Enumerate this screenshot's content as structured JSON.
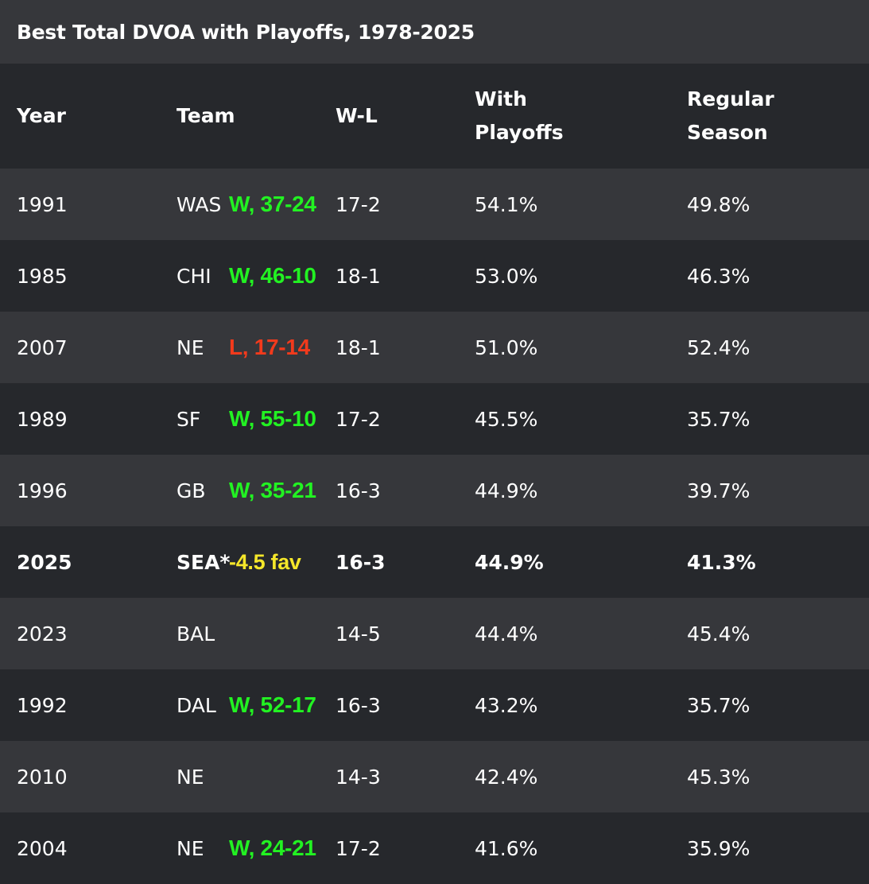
{
  "title": "Best Total DVOA with Playoffs, 1978-2025",
  "colors": {
    "win": "#22f222",
    "loss": "#f23a1c",
    "fav": "#f5e72a",
    "row_light": "#36373b",
    "row_dark": "#26282c"
  },
  "columns": {
    "year": "Year",
    "team": "Team",
    "wl": "W-L",
    "with_playoffs_line1": "With",
    "with_playoffs_line2": "Playoffs",
    "regular_season_line1": "Regular",
    "regular_season_line2": "Season"
  },
  "rows": [
    {
      "year": "1991",
      "team": "WAS",
      "result": "W, 37-24",
      "result_type": "win",
      "wl": "17-2",
      "with_playoffs": "54.1%",
      "regular_season": "49.8%"
    },
    {
      "year": "1985",
      "team": "CHI",
      "result": "W, 46-10",
      "result_type": "win",
      "wl": "18-1",
      "with_playoffs": "53.0%",
      "regular_season": "46.3%"
    },
    {
      "year": "2007",
      "team": "NE",
      "result": "L, 17-14",
      "result_type": "loss",
      "wl": "18-1",
      "with_playoffs": "51.0%",
      "regular_season": "52.4%"
    },
    {
      "year": "1989",
      "team": "SF",
      "result": "W, 55-10",
      "result_type": "win",
      "wl": "17-2",
      "with_playoffs": "45.5%",
      "regular_season": "35.7%"
    },
    {
      "year": "1996",
      "team": "GB",
      "result": "W, 35-21",
      "result_type": "win",
      "wl": "16-3",
      "with_playoffs": "44.9%",
      "regular_season": "39.7%"
    },
    {
      "year": "2025",
      "team": "SEA*",
      "result": "-4.5 fav",
      "result_type": "fav",
      "wl": "16-3",
      "with_playoffs": "44.9%",
      "regular_season": "41.3%",
      "highlight": true
    },
    {
      "year": "2023",
      "team": "BAL",
      "result": "",
      "result_type": "",
      "wl": "14-5",
      "with_playoffs": "44.4%",
      "regular_season": "45.4%"
    },
    {
      "year": "1992",
      "team": "DAL",
      "result": "W, 52-17",
      "result_type": "win",
      "wl": "16-3",
      "with_playoffs": "43.2%",
      "regular_season": "35.7%"
    },
    {
      "year": "2010",
      "team": "NE",
      "result": "",
      "result_type": "",
      "wl": "14-3",
      "with_playoffs": "42.4%",
      "regular_season": "45.3%"
    },
    {
      "year": "2004",
      "team": "NE",
      "result": "W, 24-21",
      "result_type": "win",
      "wl": "17-2",
      "with_playoffs": "41.6%",
      "regular_season": "35.9%"
    }
  ]
}
